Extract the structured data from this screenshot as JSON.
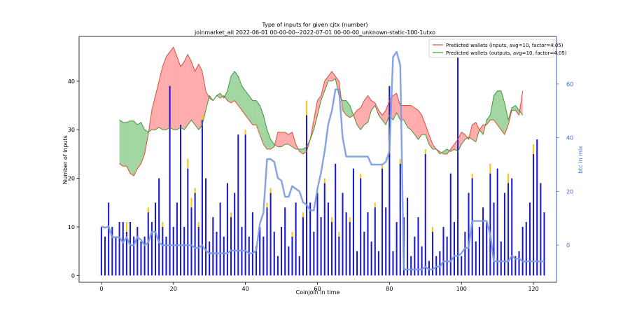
{
  "chart_data": {
    "type": "bar_line",
    "title": "Type of inputs for given cjtx (number)",
    "subtitle": "joinmarket_all 2022-06-01 00-00-00--2022-07-01 00-00-00_unknown-static-100-1utxo",
    "xlabel": "Coinjoin in time",
    "ylabel": "Number of inputs",
    "y2label": "btc in mix",
    "legend": "upper right",
    "xlim": [
      -6.2,
      126.4
    ],
    "ylim": [
      -1.4,
      49.2
    ],
    "y2lim": [
      -13.8,
      77.7
    ],
    "xticks": [
      0,
      20,
      40,
      60,
      80,
      100,
      120
    ],
    "yticks": [
      0,
      10,
      20,
      30,
      40
    ],
    "y2ticks": [
      0,
      20,
      40,
      60
    ],
    "x": [
      0,
      1,
      2,
      3,
      4,
      5,
      6,
      7,
      8,
      9,
      10,
      11,
      12,
      13,
      14,
      15,
      16,
      17,
      18,
      19,
      20,
      21,
      22,
      23,
      24,
      25,
      26,
      27,
      28,
      29,
      30,
      31,
      32,
      33,
      34,
      35,
      36,
      37,
      38,
      39,
      40,
      41,
      42,
      43,
      44,
      45,
      46,
      47,
      48,
      49,
      50,
      51,
      52,
      53,
      54,
      55,
      56,
      57,
      58,
      59,
      60,
      61,
      62,
      63,
      64,
      65,
      66,
      67,
      68,
      69,
      70,
      71,
      72,
      73,
      74,
      75,
      76,
      77,
      78,
      79,
      80,
      81,
      82,
      83,
      84,
      85,
      86,
      87,
      88,
      89,
      90,
      91,
      92,
      93,
      94,
      95,
      96,
      97,
      98,
      99,
      100,
      101,
      102,
      103,
      104,
      105,
      106,
      107,
      108,
      109,
      110,
      111,
      112,
      113,
      114,
      115,
      116,
      117,
      118,
      119,
      120,
      121,
      122,
      123
    ],
    "bars": {
      "color": "#1a1acc",
      "values": [
        10,
        8,
        15,
        10,
        8,
        11,
        11,
        9,
        11,
        8,
        10,
        7,
        8,
        13,
        11,
        15,
        20,
        10,
        8,
        39,
        10,
        15,
        31,
        10,
        22,
        14,
        17,
        10,
        32,
        20,
        7,
        12,
        9,
        15,
        8,
        19,
        12,
        17,
        29,
        10,
        29,
        8,
        13,
        6,
        10,
        8,
        14,
        17,
        9,
        4,
        10,
        14,
        6,
        8,
        15,
        4,
        12,
        33,
        15,
        9,
        17,
        12,
        19,
        15,
        11,
        23,
        8,
        17,
        13,
        11,
        22,
        5,
        20,
        9,
        13,
        7,
        14,
        5,
        22,
        14,
        39,
        5,
        11,
        23,
        12,
        16,
        4,
        8,
        12,
        6,
        25,
        3,
        9,
        4,
        5,
        10,
        8,
        21,
        11,
        45,
        4,
        9,
        17,
        20,
        7,
        10,
        14,
        11,
        21,
        15,
        22,
        7,
        17,
        19,
        20,
        4,
        5,
        10,
        11,
        15,
        25,
        28,
        19,
        13
      ]
    },
    "bar_stack": {
      "color": "#f5c518",
      "values": [
        0,
        0,
        0,
        0,
        0,
        0,
        0,
        2,
        0,
        0,
        0,
        0,
        0,
        1,
        0,
        0,
        0,
        1,
        0,
        0,
        0,
        0,
        0,
        0,
        2,
        2,
        1,
        1,
        1,
        0,
        0,
        0,
        0,
        0,
        0,
        0,
        1,
        0,
        0,
        0,
        1,
        0,
        0,
        0,
        0,
        0,
        1,
        1,
        0,
        0,
        0,
        0,
        0,
        1,
        0,
        0,
        1,
        3,
        0,
        0,
        1,
        0,
        1,
        0,
        1,
        0,
        1,
        0,
        0,
        1,
        0,
        0,
        1,
        0,
        0,
        0,
        1,
        0,
        1,
        0,
        0,
        0,
        0,
        1,
        0,
        0,
        0,
        0,
        0,
        0,
        1,
        0,
        1,
        0,
        0,
        0,
        0,
        0,
        0,
        1,
        0,
        0,
        0,
        1,
        0,
        0,
        0,
        0,
        2,
        0,
        0,
        0,
        0,
        2,
        0,
        0,
        0,
        0,
        0,
        0,
        2,
        0,
        0,
        0
      ]
    },
    "series": [
      {
        "name": "Predicted wallets (inputs, avg=10, factor=4.05)",
        "color": "#e8493a",
        "fill": "#ff8080",
        "values": [
          null,
          null,
          null,
          null,
          null,
          23,
          22.5,
          22.5,
          21,
          20.5,
          22,
          23,
          25,
          29,
          34,
          37,
          40,
          43,
          45,
          46,
          47,
          45,
          43,
          44,
          45.5,
          44,
          42,
          43.5,
          42,
          38,
          36.5,
          36,
          37,
          36.5,
          37,
          36,
          35.5,
          36,
          35,
          34,
          33,
          32,
          31,
          31,
          29,
          27,
          26,
          26,
          26.5,
          29.5,
          29.5,
          29.5,
          29,
          29.5,
          27,
          25.5,
          25,
          25.5,
          28,
          32,
          36,
          37,
          40,
          41,
          42,
          41,
          40,
          34,
          33,
          32.5,
          33,
          34,
          34.5,
          36,
          37,
          36,
          35.5,
          34,
          33,
          34,
          36,
          37,
          37.5,
          35,
          35,
          35,
          35,
          34.5,
          34,
          33,
          31,
          29,
          27,
          26,
          25.5,
          25,
          25,
          26,
          27,
          28,
          29.5,
          29,
          28,
          31,
          31.5,
          30,
          31,
          31,
          32,
          32,
          31,
          30,
          29,
          31,
          34,
          34,
          33,
          38,
          null,
          null,
          null,
          null,
          null,
          null
        ]
      },
      {
        "name": "Predicted wallets (outputs, avg=10, factor=4.05)",
        "color": "#3a9a3a",
        "fill": "#6ebf6e",
        "values": [
          null,
          null,
          null,
          null,
          null,
          32,
          31.5,
          31.5,
          31.8,
          31.8,
          31,
          31.5,
          30,
          29.5,
          30,
          30,
          30.5,
          30,
          30,
          30.5,
          30,
          30,
          30.5,
          30,
          31,
          32,
          31,
          30,
          31,
          34,
          37,
          36,
          37,
          37.5,
          36.5,
          38,
          41,
          42,
          41,
          39,
          38,
          37,
          36,
          36,
          35,
          33,
          30,
          28,
          27,
          26.5,
          26.5,
          27,
          27,
          26.5,
          26,
          26,
          26,
          26.5,
          28,
          30,
          33,
          36,
          38,
          40,
          40,
          40.5,
          37,
          36,
          36,
          35,
          33,
          31,
          30,
          31,
          31.5,
          34,
          35,
          33,
          32,
          31,
          33,
          32,
          33.5,
          32,
          32,
          30.5,
          30,
          29,
          28,
          29,
          29,
          27,
          26,
          26,
          25,
          25.5,
          26,
          25.5,
          26,
          25.5,
          27,
          28,
          28.5,
          28,
          27.5,
          30,
          29,
          32,
          33,
          37,
          38,
          38,
          35.5,
          32,
          34.5,
          35,
          34,
          33,
          null,
          null,
          null,
          null,
          null,
          null
        ]
      }
    ],
    "btc_line": {
      "color": "#7b9be0",
      "axis": "y2",
      "values": [
        7,
        6.5,
        7,
        3,
        3,
        3,
        1,
        3,
        0,
        0,
        3,
        2,
        0,
        1,
        5,
        5,
        1,
        0,
        0,
        0,
        0,
        0,
        0,
        0,
        0,
        0,
        -1,
        -1,
        0,
        -2,
        -3,
        -3,
        -3,
        -3,
        -3,
        -3,
        -2,
        -2,
        -2,
        -2,
        -2,
        -3,
        -3,
        -2,
        8,
        12,
        32,
        32,
        31,
        25,
        24,
        18,
        18,
        22,
        21,
        20,
        16,
        15,
        13,
        13,
        21,
        27,
        35,
        45,
        50,
        58,
        58,
        40,
        33,
        33,
        33,
        33,
        33,
        33,
        33,
        30,
        30,
        30,
        30,
        31,
        35,
        70,
        72,
        67,
        -9,
        -9,
        -9,
        -9,
        -9,
        -9,
        -8,
        -9,
        -9,
        -8,
        -8,
        -6,
        -6,
        -6,
        -4,
        -4,
        -3,
        -1,
        -1,
        9,
        9,
        9,
        9,
        9,
        4,
        -6,
        -6,
        -6,
        -6,
        -6,
        -4,
        -5,
        -5,
        -6,
        -6,
        -6,
        -6,
        -6,
        -6,
        -6
      ]
    }
  }
}
